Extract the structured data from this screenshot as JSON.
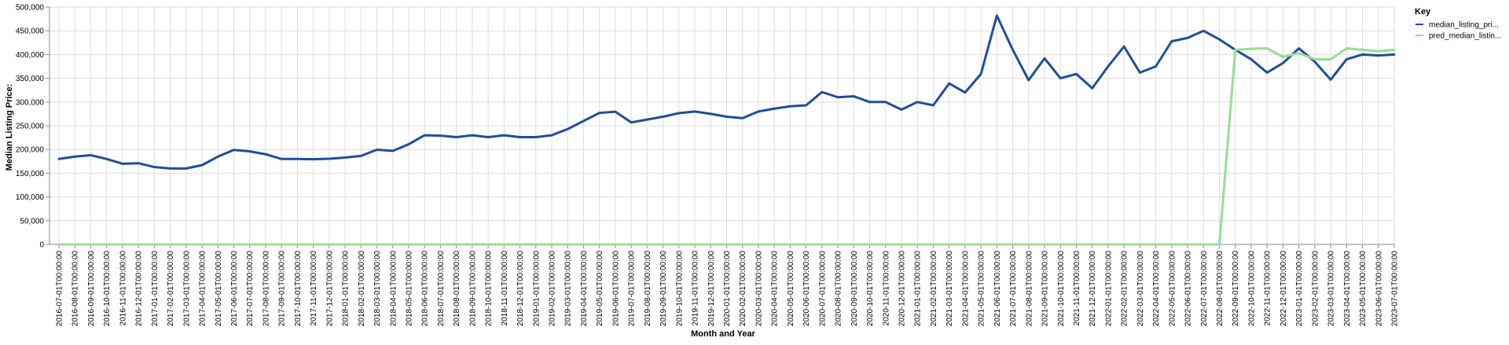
{
  "chart_data": {
    "type": "line",
    "title": "",
    "xlabel": "Month and Year",
    "ylabel": "Median Listing Price:",
    "ylim": [
      0,
      500000
    ],
    "y_ticks": [
      "0",
      "50,000",
      "100,000",
      "150,000",
      "200,000",
      "250,000",
      "300,000",
      "350,000",
      "400,000",
      "450,000",
      "500,000"
    ],
    "y_tick_values": [
      0,
      50000,
      100000,
      150000,
      200000,
      250000,
      300000,
      350000,
      400000,
      450000,
      500000
    ],
    "grid": true,
    "legend": {
      "title": "Key",
      "position": "top-right"
    },
    "categories": [
      "2016-07-01T00:00:00",
      "2016-08-01T00:00:00",
      "2016-09-01T00:00:00",
      "2016-10-01T00:00:00",
      "2016-11-01T00:00:00",
      "2016-12-01T00:00:00",
      "2017-01-01T00:00:00",
      "2017-02-01T00:00:00",
      "2017-03-01T00:00:00",
      "2017-04-01T00:00:00",
      "2017-05-01T00:00:00",
      "2017-06-01T00:00:00",
      "2017-07-01T00:00:00",
      "2017-08-01T00:00:00",
      "2017-09-01T00:00:00",
      "2017-10-01T00:00:00",
      "2017-11-01T00:00:00",
      "2017-12-01T00:00:00",
      "2018-01-01T00:00:00",
      "2018-02-01T00:00:00",
      "2018-03-01T00:00:00",
      "2018-04-01T00:00:00",
      "2018-05-01T00:00:00",
      "2018-06-01T00:00:00",
      "2018-07-01T00:00:00",
      "2018-08-01T00:00:00",
      "2018-09-01T00:00:00",
      "2018-10-01T00:00:00",
      "2018-11-01T00:00:00",
      "2018-12-01T00:00:00",
      "2019-01-01T00:00:00",
      "2019-02-01T00:00:00",
      "2019-03-01T00:00:00",
      "2019-04-01T00:00:00",
      "2019-05-01T00:00:00",
      "2019-06-01T00:00:00",
      "2019-07-01T00:00:00",
      "2019-08-01T00:00:00",
      "2019-09-01T00:00:00",
      "2019-10-01T00:00:00",
      "2019-11-01T00:00:00",
      "2019-12-01T00:00:00",
      "2020-01-01T00:00:00",
      "2020-02-01T00:00:00",
      "2020-03-01T00:00:00",
      "2020-04-01T00:00:00",
      "2020-05-01T00:00:00",
      "2020-06-01T00:00:00",
      "2020-07-01T00:00:00",
      "2020-08-01T00:00:00",
      "2020-09-01T00:00:00",
      "2020-10-01T00:00:00",
      "2020-11-01T00:00:00",
      "2020-12-01T00:00:00",
      "2021-01-01T00:00:00",
      "2021-02-01T00:00:00",
      "2021-03-01T00:00:00",
      "2021-04-01T00:00:00",
      "2021-05-01T00:00:00",
      "2021-06-01T00:00:00",
      "2021-07-01T00:00:00",
      "2021-08-01T00:00:00",
      "2021-09-01T00:00:00",
      "2021-10-01T00:00:00",
      "2021-11-01T00:00:00",
      "2021-12-01T00:00:00",
      "2022-01-01T00:00:00",
      "2022-02-01T00:00:00",
      "2022-03-01T00:00:00",
      "2022-04-01T00:00:00",
      "2022-05-01T00:00:00",
      "2022-06-01T00:00:00",
      "2022-07-01T00:00:00",
      "2022-08-01T00:00:00",
      "2022-09-01T00:00:00",
      "2022-10-01T00:00:00",
      "2022-11-01T00:00:00",
      "2022-12-01T00:00:00",
      "2023-01-01T00:00:00",
      "2023-02-01T00:00:00",
      "2023-03-01T00:00:00",
      "2023-04-01T00:00:00",
      "2023-05-01T00:00:00",
      "2023-06-01T00:00:00",
      "2023-07-01T00:00:00"
    ],
    "series": [
      {
        "name": "median_listing_pri...",
        "color": "#1f4e9c",
        "values": [
          180000,
          185000,
          188000,
          180000,
          170000,
          171000,
          163000,
          160000,
          160000,
          167000,
          185000,
          199000,
          196000,
          190000,
          180000,
          180000,
          179500,
          180500,
          183000,
          186500,
          199500,
          197000,
          211000,
          230000,
          229000,
          226000,
          230000,
          226000,
          230000,
          226000,
          226000,
          230000,
          243000,
          260000,
          277000,
          279500,
          257000,
          263000,
          269000,
          276500,
          280000,
          275000,
          269000,
          266000,
          280000,
          286000,
          291000,
          293000,
          321000,
          310000,
          312000,
          300000,
          300000,
          284000,
          300000,
          293000,
          339000,
          320000,
          359000,
          482000,
          410000,
          346000,
          392000,
          350000,
          359000,
          329000,
          375000,
          417000,
          362000,
          375000,
          428000,
          435000,
          450000,
          432000,
          410000,
          390000,
          362000,
          382000,
          413000,
          385000,
          347000,
          390000,
          400000,
          398000,
          400000
        ]
      },
      {
        "name": "pred_median_listin...",
        "color": "#98dd95",
        "values": [
          0,
          0,
          0,
          0,
          0,
          0,
          0,
          0,
          0,
          0,
          0,
          0,
          0,
          0,
          0,
          0,
          0,
          0,
          0,
          0,
          0,
          0,
          0,
          0,
          0,
          0,
          0,
          0,
          0,
          0,
          0,
          0,
          0,
          0,
          0,
          0,
          0,
          0,
          0,
          0,
          0,
          0,
          0,
          0,
          0,
          0,
          0,
          0,
          0,
          0,
          0,
          0,
          0,
          0,
          0,
          0,
          0,
          0,
          0,
          0,
          0,
          0,
          0,
          0,
          0,
          0,
          0,
          0,
          0,
          0,
          0,
          0,
          0,
          0,
          410000,
          412000,
          413000,
          395000,
          403000,
          390000,
          390000,
          413000,
          410000,
          407000,
          410000
        ]
      }
    ]
  }
}
